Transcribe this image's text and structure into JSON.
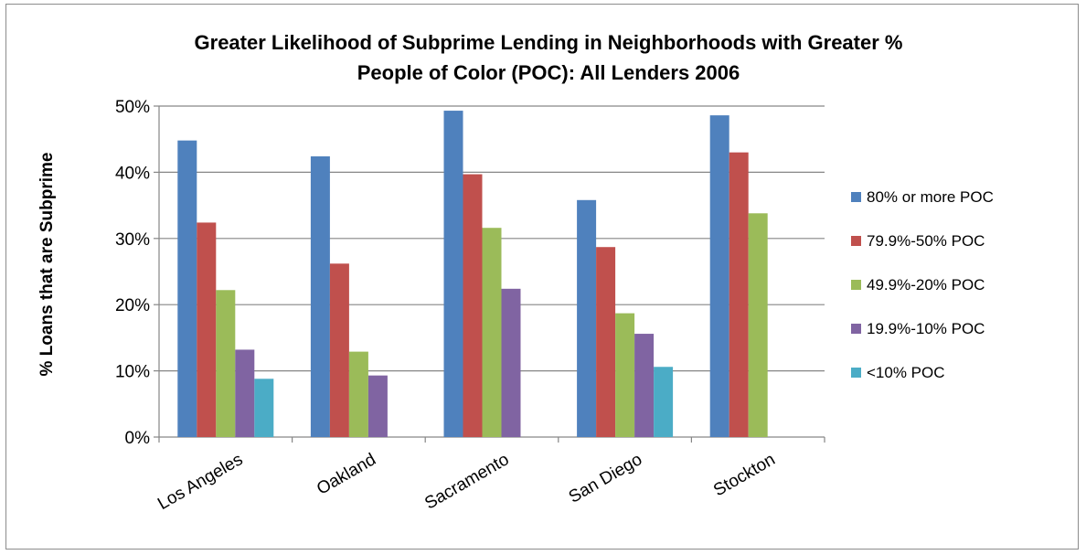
{
  "chart_data": {
    "type": "bar",
    "title_line1": "Greater Likelihood of Subprime Lending in Neighborhoods with Greater %",
    "title_line2": "People of Color (POC): All Lenders 2006",
    "xlabel": "",
    "ylabel": "% Loans that are Subprime",
    "ylim": [
      0,
      50
    ],
    "yticks": [
      "0%",
      "10%",
      "20%",
      "30%",
      "40%",
      "50%"
    ],
    "grid": true,
    "legend_position": "right",
    "categories": [
      "Los Angeles",
      "Oakland",
      "Sacramento",
      "San Diego",
      "Stockton"
    ],
    "series": [
      {
        "name": "80% or more POC",
        "color": "#4f81bd",
        "values": [
          44.8,
          42.4,
          49.3,
          35.8,
          48.6
        ]
      },
      {
        "name": "79.9%-50% POC",
        "color": "#c0504d",
        "values": [
          32.4,
          26.2,
          39.7,
          28.7,
          43.0
        ]
      },
      {
        "name": "49.9%-20% POC",
        "color": "#9bbb59",
        "values": [
          22.2,
          12.9,
          31.6,
          18.7,
          33.8
        ]
      },
      {
        "name": "19.9%-10% POC",
        "color": "#8064a2",
        "values": [
          13.2,
          9.3,
          22.4,
          15.6,
          null
        ]
      },
      {
        "name": "<10% POC",
        "color": "#4bacc6",
        "values": [
          8.8,
          null,
          null,
          10.6,
          null
        ]
      }
    ]
  }
}
